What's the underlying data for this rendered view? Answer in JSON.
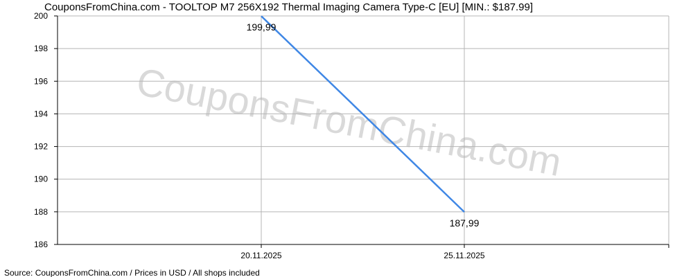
{
  "chart_data": {
    "type": "line",
    "title": "CouponsFromChina.com - TOOLTOP M7 256X192 Thermal Imaging Camera Type-C [EU] [MIN.: $187.99]",
    "watermark": "CouponsFromChina.com",
    "footer": "Source: CouponsFromChina.com / Prices in USD / All shops included",
    "xlabel": "",
    "ylabel": "",
    "ylim": [
      186,
      200
    ],
    "y_ticks": [
      "186",
      "188",
      "190",
      "192",
      "194",
      "196",
      "198",
      "200"
    ],
    "x_ticks": [
      "20.11.2025",
      "25.11.2025"
    ],
    "grid": true,
    "series": [
      {
        "color": "#3f87e5",
        "points": [
          {
            "x": "20.11.2025",
            "y": 199.99,
            "label": "199,99"
          },
          {
            "x": "25.11.2025",
            "y": 187.99,
            "label": "187,99"
          }
        ]
      }
    ],
    "colors": {
      "line": "#3f87e5",
      "grid": "#b4b4b4",
      "axis": "#000000",
      "watermark": "#d9d9d9"
    }
  }
}
